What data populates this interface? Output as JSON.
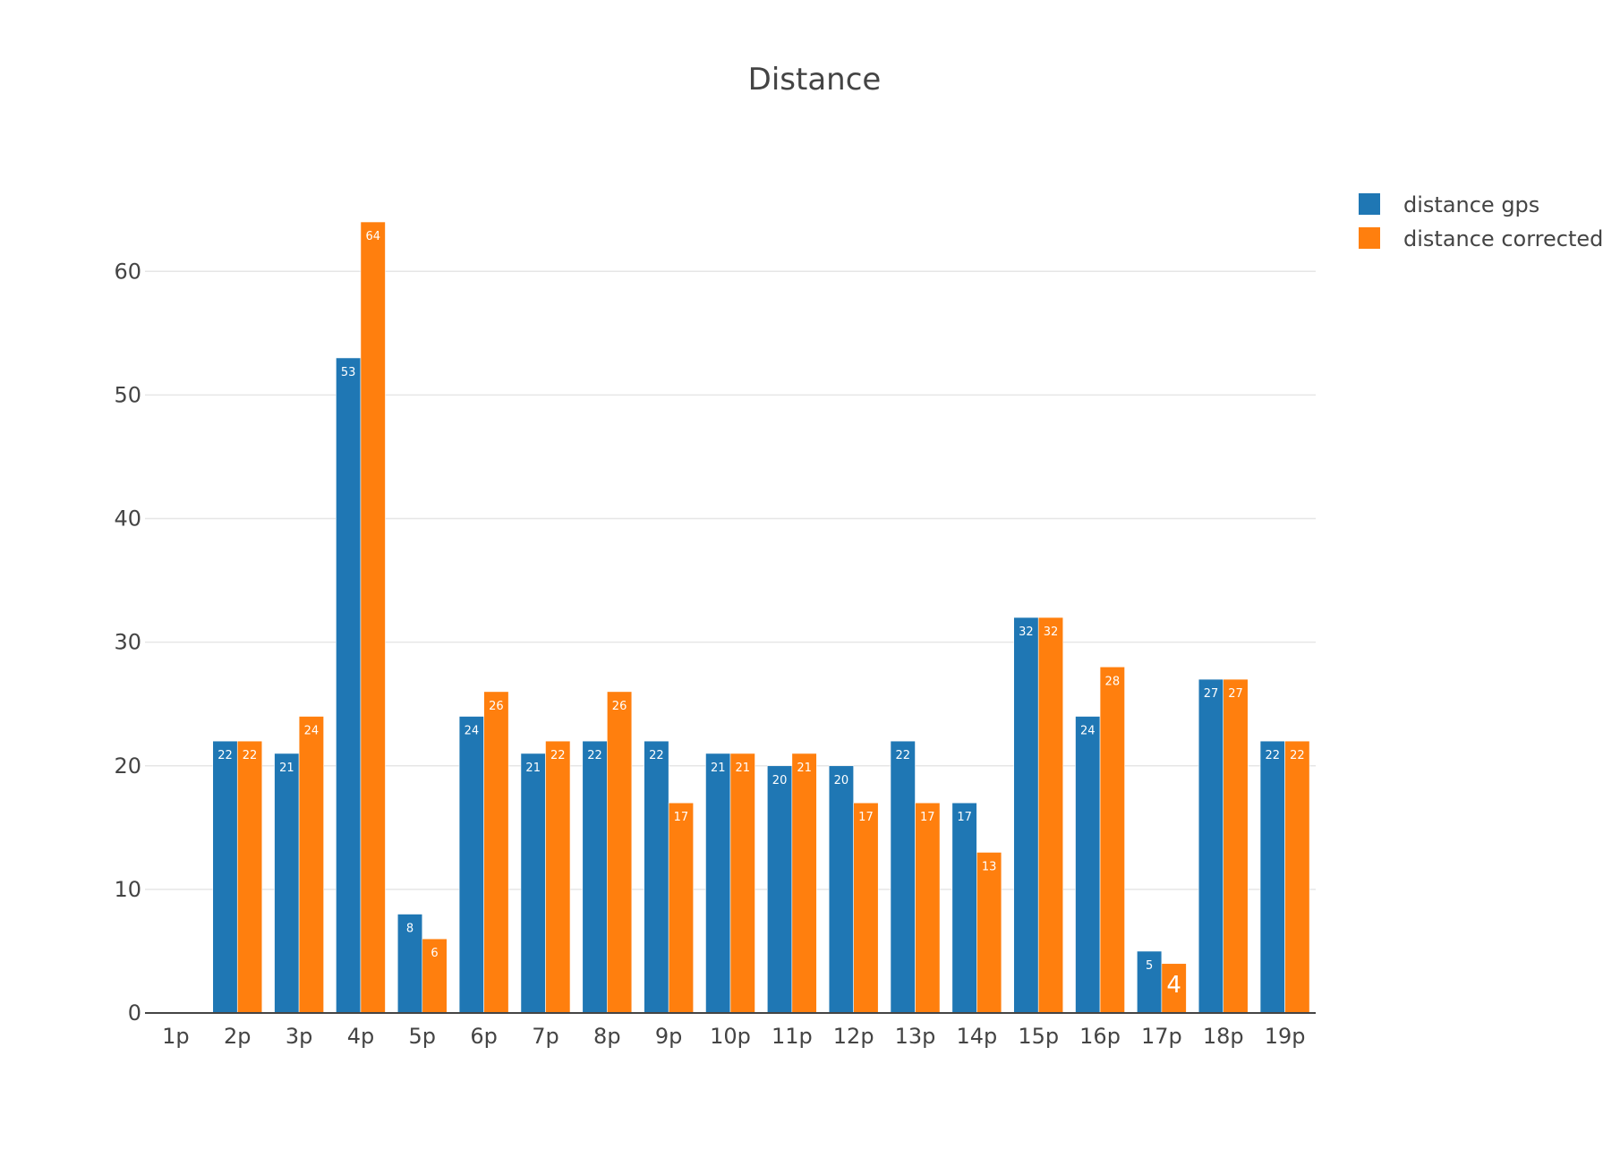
{
  "chart_data": {
    "type": "bar",
    "title": "Distance",
    "xlabel": "",
    "ylabel": "",
    "categories": [
      "1p",
      "2p",
      "3p",
      "4p",
      "5p",
      "6p",
      "7p",
      "8p",
      "9p",
      "10p",
      "11p",
      "12p",
      "13p",
      "14p",
      "15p",
      "16p",
      "17p",
      "18p",
      "19p"
    ],
    "series": [
      {
        "name": "distance gps",
        "color": "#1f77b4",
        "values": [
          0,
          22,
          21,
          53,
          8,
          24,
          21,
          22,
          22,
          21,
          20,
          20,
          22,
          17,
          32,
          24,
          5,
          27,
          22
        ]
      },
      {
        "name": "distance corrected",
        "color": "#ff7f0e",
        "values": [
          0,
          22,
          24,
          64,
          6,
          26,
          22,
          26,
          17,
          21,
          21,
          17,
          17,
          13,
          32,
          28,
          4,
          27,
          22
        ]
      }
    ],
    "ylim": [
      0,
      64
    ],
    "yticks": [
      0,
      10,
      20,
      30,
      40,
      50,
      60
    ],
    "grid": true,
    "legend_position": "top-right",
    "data_labels": true
  }
}
